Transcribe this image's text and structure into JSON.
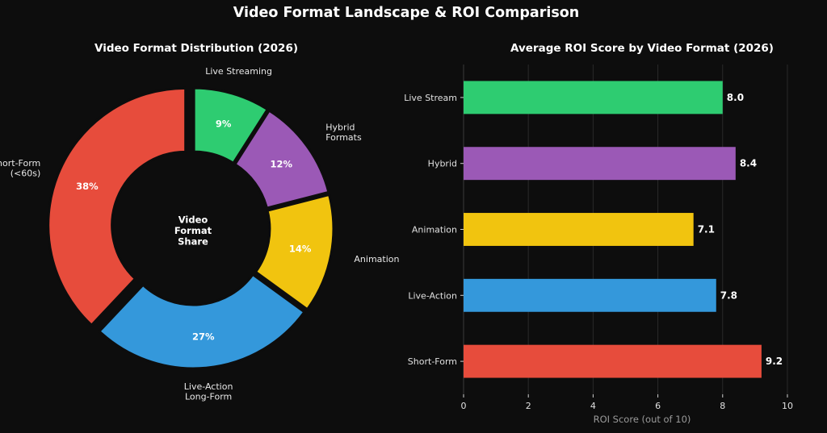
{
  "title": "Video Format Landscape & ROI Comparison",
  "chart_data": [
    {
      "type": "pie",
      "title": "Video Format Distribution (2026)",
      "center_label": [
        "Video",
        "Format",
        "Share"
      ],
      "slices": [
        {
          "label": [
            "Live Streaming"
          ],
          "value": 9,
          "pct_label": "9%",
          "color": "#2ecc71"
        },
        {
          "label": [
            "Hybrid",
            "Formats"
          ],
          "value": 12,
          "pct_label": "12%",
          "color": "#9b59b6"
        },
        {
          "label": [
            "Animation"
          ],
          "value": 14,
          "pct_label": "14%",
          "color": "#f1c40f"
        },
        {
          "label": [
            "Live-Action",
            "Long-Form"
          ],
          "value": 27,
          "pct_label": "27%",
          "color": "#3498db"
        },
        {
          "label": [
            "Short-Form",
            "(<60s)"
          ],
          "value": 38,
          "pct_label": "38%",
          "color": "#e74c3c"
        }
      ]
    },
    {
      "type": "bar",
      "orientation": "horizontal",
      "title": "Average ROI Score by Video Format (2026)",
      "xlabel": "ROI Score (out of 10)",
      "xlim": [
        0,
        10.2
      ],
      "xticks": [
        "0",
        "2",
        "4",
        "6",
        "8",
        "10"
      ],
      "grid": "vertical",
      "categories": [
        "Live Stream",
        "Hybrid",
        "Animation",
        "Live-Action",
        "Short-Form"
      ],
      "values": [
        8.0,
        8.4,
        7.1,
        7.8,
        9.2
      ],
      "value_labels": [
        "8.0",
        "8.4",
        "7.1",
        "7.8",
        "9.2"
      ],
      "colors": [
        "#2ecc71",
        "#9b59b6",
        "#f1c40f",
        "#3498db",
        "#e74c3c"
      ]
    }
  ]
}
